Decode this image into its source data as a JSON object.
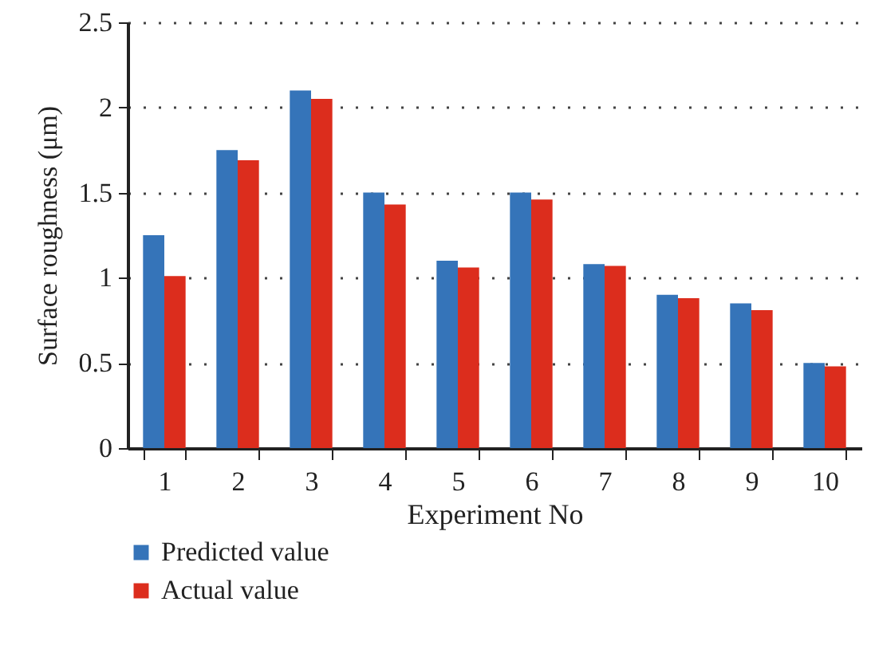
{
  "chart_data": {
    "type": "bar",
    "xlabel": "Experiment No",
    "ylabel": "Surface roughness (μm)",
    "categories": [
      "1",
      "2",
      "3",
      "4",
      "5",
      "6",
      "7",
      "8",
      "9",
      "10"
    ],
    "series": [
      {
        "name": "Predicted value",
        "color": "#3574b9",
        "values": [
          1.25,
          1.75,
          2.1,
          1.5,
          1.1,
          1.5,
          1.08,
          0.9,
          0.85,
          0.5
        ]
      },
      {
        "name": "Actual value",
        "color": "#dc2d1d",
        "values": [
          1.01,
          1.69,
          2.05,
          1.43,
          1.06,
          1.46,
          1.07,
          0.88,
          0.81,
          0.48
        ]
      }
    ],
    "ylim": [
      0,
      2.5
    ],
    "yticks": [
      0,
      0.5,
      1,
      1.5,
      2,
      2.5
    ],
    "grid": "y",
    "legend": "bottom left"
  }
}
